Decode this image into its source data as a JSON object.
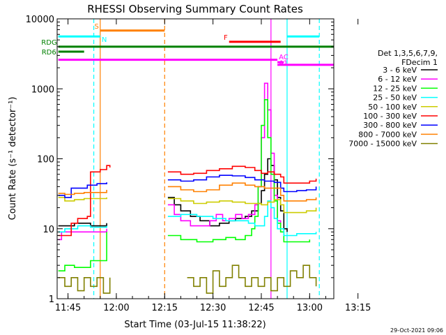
{
  "chart_data": {
    "type": "line",
    "title": "RHESSI Observing Summary Count Rates",
    "xlabel": "Start Time (03-Jul-15 11:38:22)",
    "ylabel": "Count Rate (s⁻¹ detector⁻¹)",
    "yscale": "log",
    "ylim": [
      1,
      10000
    ],
    "xlim_minutes": [
      11.63,
      97.5
    ],
    "x_ticks": [
      {
        "label": "11:45",
        "min": 15
      },
      {
        "label": "12:00",
        "min": 30
      },
      {
        "label": "12:15",
        "min": 45
      },
      {
        "label": "12:30",
        "min": 60
      },
      {
        "label": "12:45",
        "min": 75
      },
      {
        "label": "13:00",
        "min": 90
      },
      {
        "label": "13:15",
        "min": 105
      }
    ],
    "y_ticks": [
      {
        "label": "1",
        "v": 1
      },
      {
        "label": "10",
        "v": 10
      },
      {
        "label": "100",
        "v": 100
      },
      {
        "label": "1000",
        "v": 1000
      },
      {
        "label": "10000",
        "v": 10000
      }
    ],
    "legend_title": [
      "Det 1,3,5,6,7,9,",
      "FDecim 1"
    ],
    "legend_placement": "right",
    "footer_date": "29-Oct-2021 09:06",
    "series": [
      {
        "name": "3 - 6 keV",
        "color": "#000000",
        "points": [
          [
            12,
            0
          ],
          [
            12,
            11
          ],
          [
            13,
            11
          ],
          [
            17,
            12
          ],
          [
            22,
            11
          ],
          [
            27,
            12
          ],
          [
            29,
            0
          ],
          [
            46,
            0
          ],
          [
            46,
            28
          ],
          [
            48,
            22
          ],
          [
            50,
            18
          ],
          [
            53,
            15
          ],
          [
            56,
            13
          ],
          [
            59,
            11
          ],
          [
            62,
            12
          ],
          [
            65,
            13
          ],
          [
            67,
            14
          ],
          [
            70,
            15
          ],
          [
            72,
            18
          ],
          [
            74,
            23
          ],
          [
            75,
            35
          ],
          [
            76,
            60
          ],
          [
            77,
            100
          ],
          [
            78,
            80
          ],
          [
            79,
            50
          ],
          [
            80,
            28
          ],
          [
            81,
            18
          ],
          [
            82,
            10
          ],
          [
            83,
            9
          ],
          [
            84,
            0
          ]
        ]
      },
      {
        "name": "6 - 12 keV",
        "color": "#ff00ff",
        "points": [
          [
            12,
            0
          ],
          [
            12,
            7
          ],
          [
            13,
            9
          ],
          [
            17,
            9
          ],
          [
            22,
            9
          ],
          [
            27,
            10
          ],
          [
            29,
            0
          ],
          [
            46,
            0
          ],
          [
            46,
            22
          ],
          [
            48,
            16
          ],
          [
            50,
            13
          ],
          [
            53,
            11
          ],
          [
            56,
            11
          ],
          [
            59,
            13
          ],
          [
            61,
            16
          ],
          [
            63,
            13
          ],
          [
            65,
            14
          ],
          [
            67,
            16
          ],
          [
            69,
            14
          ],
          [
            71,
            16
          ],
          [
            73,
            22
          ],
          [
            74,
            40
          ],
          [
            75,
            200
          ],
          [
            76,
            1200
          ],
          [
            77,
            500
          ],
          [
            78,
            120
          ],
          [
            79,
            30
          ],
          [
            80,
            13
          ],
          [
            81,
            9
          ],
          [
            82,
            0
          ],
          [
            85,
            0
          ],
          [
            85,
            1
          ],
          [
            86,
            0
          ]
        ]
      },
      {
        "name": "12 - 25 keV",
        "color": "#00ff00",
        "points": [
          [
            12,
            0
          ],
          [
            12,
            2.5
          ],
          [
            14,
            3
          ],
          [
            17,
            2.8
          ],
          [
            22,
            3.5
          ],
          [
            27,
            9
          ],
          [
            29,
            0
          ],
          [
            46,
            0
          ],
          [
            46,
            8
          ],
          [
            50,
            7
          ],
          [
            55,
            6.5
          ],
          [
            60,
            7
          ],
          [
            64,
            7.5
          ],
          [
            67,
            7
          ],
          [
            70,
            8
          ],
          [
            72,
            10
          ],
          [
            73,
            15
          ],
          [
            74,
            40
          ],
          [
            75,
            300
          ],
          [
            76,
            700
          ],
          [
            77,
            200
          ],
          [
            78,
            60
          ],
          [
            79,
            25
          ],
          [
            80,
            12
          ],
          [
            81,
            9
          ],
          [
            82,
            6.5
          ],
          [
            86,
            6.5
          ],
          [
            90,
            7
          ],
          [
            92,
            0
          ]
        ]
      },
      {
        "name": "25 - 50 keV",
        "color": "#00ffff",
        "points": [
          [
            12,
            0
          ],
          [
            12,
            9
          ],
          [
            14,
            10
          ],
          [
            18,
            11
          ],
          [
            22,
            10.5
          ],
          [
            27,
            11
          ],
          [
            29,
            0
          ],
          [
            46,
            0
          ],
          [
            46,
            15
          ],
          [
            50,
            16
          ],
          [
            55,
            15
          ],
          [
            60,
            14
          ],
          [
            64,
            13
          ],
          [
            68,
            13
          ],
          [
            71,
            12
          ],
          [
            73,
            11
          ],
          [
            75,
            11
          ],
          [
            76,
            15
          ],
          [
            77,
            25
          ],
          [
            78,
            20
          ],
          [
            79,
            14
          ],
          [
            80,
            10
          ],
          [
            82,
            8
          ],
          [
            84,
            8
          ],
          [
            86,
            8.5
          ],
          [
            92,
            9
          ],
          [
            93,
            0
          ]
        ]
      },
      {
        "name": "50 - 100 keV",
        "color": "#cccc00",
        "points": [
          [
            12,
            0
          ],
          [
            12,
            28
          ],
          [
            14,
            25
          ],
          [
            17,
            26
          ],
          [
            20,
            27
          ],
          [
            24,
            27
          ],
          [
            27,
            28
          ],
          [
            29,
            0
          ],
          [
            46,
            0
          ],
          [
            46,
            27
          ],
          [
            50,
            25
          ],
          [
            54,
            23
          ],
          [
            58,
            24
          ],
          [
            62,
            25
          ],
          [
            66,
            24
          ],
          [
            70,
            23
          ],
          [
            73,
            23
          ],
          [
            75,
            22
          ],
          [
            77,
            24
          ],
          [
            79,
            26
          ],
          [
            81,
            22
          ],
          [
            82,
            17
          ],
          [
            86,
            17
          ],
          [
            89,
            18
          ],
          [
            92,
            20
          ],
          [
            93,
            0
          ]
        ]
      },
      {
        "name": "100 - 300 keV",
        "color": "#ff0000",
        "points": [
          [
            12,
            0
          ],
          [
            12,
            8
          ],
          [
            13,
            8
          ],
          [
            15,
            8
          ],
          [
            16,
            12
          ],
          [
            18,
            14
          ],
          [
            21,
            15
          ],
          [
            22,
            65
          ],
          [
            25,
            70
          ],
          [
            27,
            80
          ],
          [
            28,
            75
          ],
          [
            29,
            0
          ],
          [
            46,
            0
          ],
          [
            46,
            65
          ],
          [
            50,
            60
          ],
          [
            54,
            62
          ],
          [
            58,
            68
          ],
          [
            62,
            72
          ],
          [
            66,
            78
          ],
          [
            70,
            75
          ],
          [
            73,
            68
          ],
          [
            75,
            62
          ],
          [
            77,
            65
          ],
          [
            79,
            60
          ],
          [
            81,
            55
          ],
          [
            82,
            45
          ],
          [
            86,
            45
          ],
          [
            90,
            48
          ],
          [
            92,
            52
          ],
          [
            93,
            0
          ]
        ]
      },
      {
        "name": "300 - 800 keV",
        "color": "#0000ff",
        "points": [
          [
            12,
            0
          ],
          [
            12,
            30
          ],
          [
            14,
            28
          ],
          [
            16,
            38
          ],
          [
            19,
            38
          ],
          [
            21,
            42
          ],
          [
            24,
            44
          ],
          [
            27,
            46
          ],
          [
            29,
            0
          ],
          [
            46,
            0
          ],
          [
            46,
            50
          ],
          [
            50,
            48
          ],
          [
            54,
            50
          ],
          [
            58,
            55
          ],
          [
            62,
            58
          ],
          [
            66,
            57
          ],
          [
            70,
            54
          ],
          [
            73,
            50
          ],
          [
            76,
            48
          ],
          [
            79,
            46
          ],
          [
            81,
            38
          ],
          [
            82,
            34
          ],
          [
            86,
            35
          ],
          [
            89,
            36
          ],
          [
            92,
            40
          ],
          [
            93,
            0
          ]
        ]
      },
      {
        "name": "800 - 7000 keV",
        "color": "#ff8000",
        "points": [
          [
            12,
            0
          ],
          [
            12,
            32
          ],
          [
            14,
            31
          ],
          [
            17,
            32
          ],
          [
            20,
            33
          ],
          [
            23,
            33
          ],
          [
            27,
            36
          ],
          [
            29,
            0
          ],
          [
            46,
            0
          ],
          [
            46,
            40
          ],
          [
            50,
            36
          ],
          [
            54,
            34
          ],
          [
            58,
            36
          ],
          [
            62,
            42
          ],
          [
            66,
            45
          ],
          [
            70,
            42
          ],
          [
            73,
            40
          ],
          [
            76,
            38
          ],
          [
            79,
            38
          ],
          [
            81,
            30
          ],
          [
            82,
            25
          ],
          [
            86,
            25
          ],
          [
            89,
            26
          ],
          [
            92,
            28
          ],
          [
            93,
            0
          ]
        ]
      },
      {
        "name": "7000 - 15000 keV",
        "color": "#808000",
        "points": [
          [
            12,
            0
          ],
          [
            12,
            2
          ],
          [
            14,
            1.5
          ],
          [
            16,
            2
          ],
          [
            18,
            1.3
          ],
          [
            20,
            2
          ],
          [
            22,
            1.5
          ],
          [
            24,
            2
          ],
          [
            26,
            1.2
          ],
          [
            28,
            2
          ],
          [
            29,
            0
          ],
          [
            52,
            0
          ],
          [
            52,
            2
          ],
          [
            54,
            1.5
          ],
          [
            56,
            2
          ],
          [
            58,
            1.2
          ],
          [
            60,
            2.5
          ],
          [
            62,
            1.5
          ],
          [
            64,
            2
          ],
          [
            66,
            3
          ],
          [
            68,
            2
          ],
          [
            70,
            1.5
          ],
          [
            72,
            2
          ],
          [
            74,
            1.5
          ],
          [
            76,
            2
          ],
          [
            78,
            1.3
          ],
          [
            80,
            2
          ],
          [
            82,
            1.5
          ],
          [
            84,
            2.5
          ],
          [
            86,
            2
          ],
          [
            88,
            3
          ],
          [
            90,
            2
          ],
          [
            92,
            1.5
          ],
          [
            93,
            0
          ]
        ]
      }
    ],
    "flags": [
      {
        "label": "RD6",
        "color": "#008000",
        "y": 3400,
        "x0": 12,
        "x1": 20,
        "label_side": "left"
      },
      {
        "label": "RDG",
        "color": "#008000",
        "y": 4000,
        "x0": 12,
        "x1": 97.5,
        "label_side": "start"
      },
      {
        "label": "N",
        "color": "#00ffff",
        "y": 5600,
        "x0": 12,
        "x1": 25,
        "label_side": "end"
      },
      {
        "label": "",
        "color": "#00ffff",
        "y": 5600,
        "x0": 83,
        "x1": 93,
        "label_side": "none"
      },
      {
        "label": "S",
        "color": "#ff8000",
        "y": 6800,
        "x0": 25,
        "x1": 45,
        "label_side": "start"
      },
      {
        "label": "F",
        "color": "#ff0000",
        "y": 4700,
        "x0": 65,
        "x1": 81,
        "label_side": "start"
      },
      {
        "label": "A1",
        "color": "#ff00ff",
        "y": 2600,
        "x0": 12,
        "x1": 80,
        "label_side": "end"
      },
      {
        "label": "",
        "color": "#ff00ff",
        "y": 2200,
        "x0": 80,
        "x1": 97.5,
        "label_side": "none"
      },
      {
        "label": "AC",
        "color": "#ff00ff",
        "y": 2400,
        "x0": 80,
        "x1": 82,
        "label_side": "top"
      }
    ]
  }
}
